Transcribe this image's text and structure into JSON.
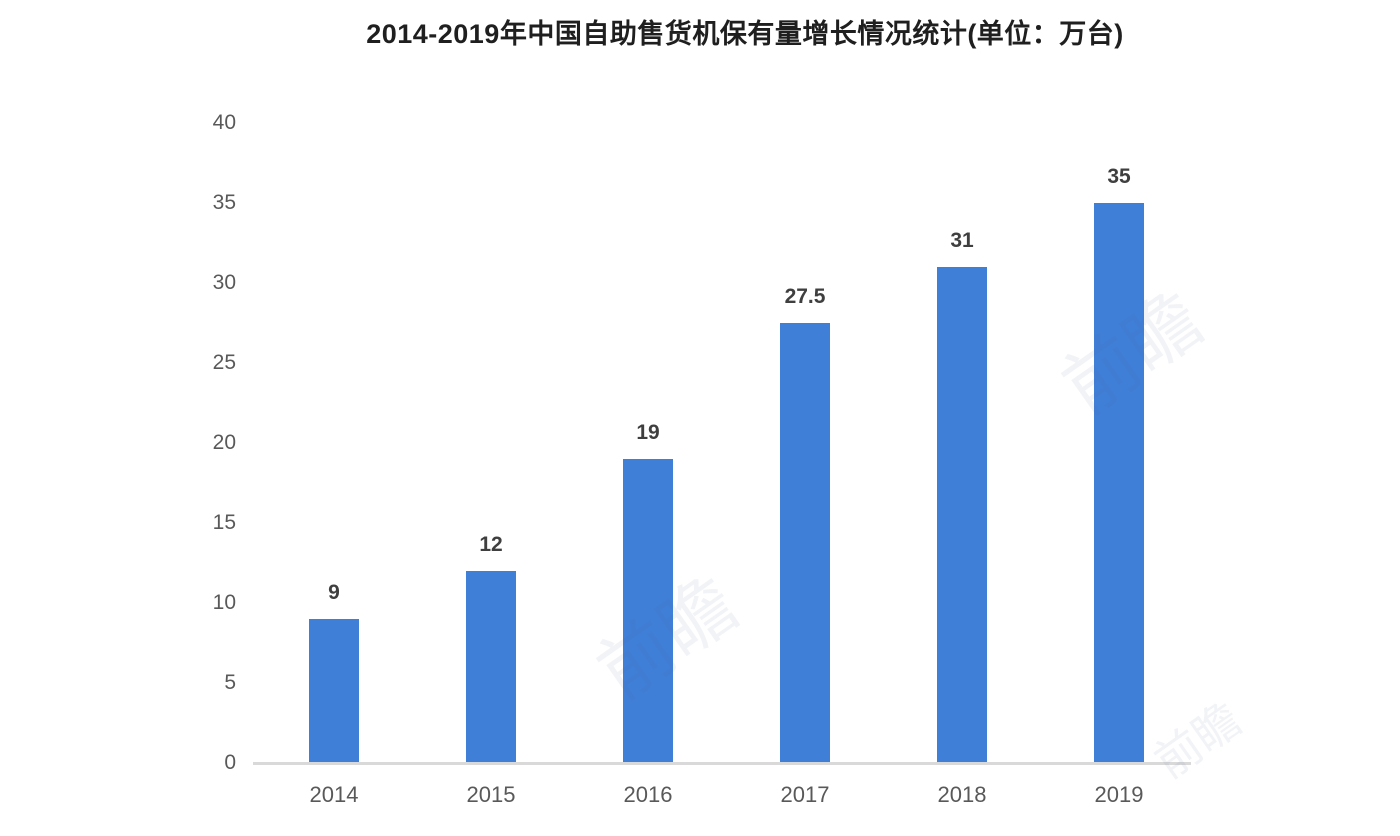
{
  "chart_data": {
    "type": "bar",
    "title": "2014-2019年中国自助售货机保有量增长情况统计(单位：万台)",
    "categories": [
      "2014",
      "2015",
      "2016",
      "2017",
      "2018",
      "2019"
    ],
    "values": [
      9,
      12,
      19,
      27.5,
      31,
      35
    ],
    "value_labels": [
      "9",
      "12",
      "19",
      "27.5",
      "31",
      "35"
    ],
    "xlabel": "",
    "ylabel": "",
    "ylim": [
      0,
      40
    ],
    "yticks": [
      0,
      5,
      10,
      15,
      20,
      25,
      30,
      35,
      40
    ],
    "grid": false,
    "legend": null,
    "bar_color": "#3f7fd8"
  },
  "colors": {
    "bar": "#3f7fd8",
    "axis_line": "#d9d9d9",
    "tick_text": "#595959",
    "value_text": "#3f3f3f",
    "title_text": "#1f1f1f",
    "background": "#ffffff"
  },
  "watermark": {
    "text": "前瞻"
  }
}
